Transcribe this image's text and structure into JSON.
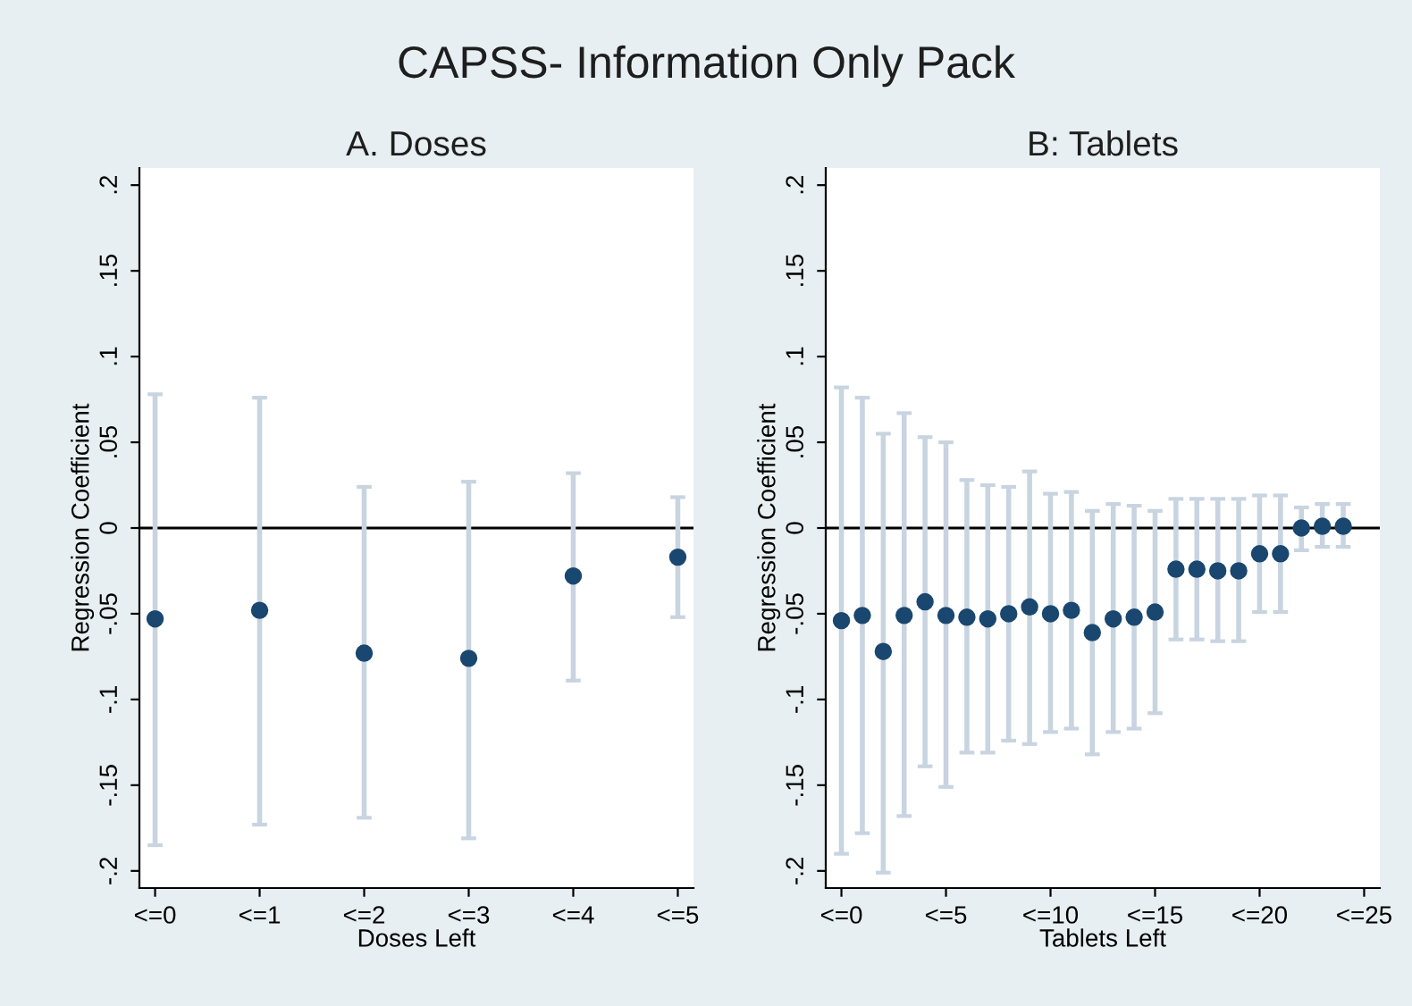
{
  "chart_data": [
    {
      "type": "scatter",
      "title": "A. Doses",
      "xlabel": "Doses Left",
      "ylabel": "Regression Coefficient",
      "annotations": [
        "CAPSS- Information Only Pack"
      ],
      "categories": [
        "<=0",
        "<=1",
        "<=2",
        "<=3",
        "<=4",
        "<=5"
      ],
      "series": [
        {
          "color": "#1a476f",
          "values": [
            -0.053,
            -0.048,
            -0.073,
            -0.076,
            -0.028,
            -0.017
          ],
          "errors": [
            [
              -0.185,
              0.078
            ],
            [
              -0.173,
              0.076
            ],
            [
              -0.169,
              0.024
            ],
            [
              -0.181,
              0.027
            ],
            [
              -0.089,
              0.032
            ],
            [
              -0.052,
              0.018
            ]
          ]
        }
      ],
      "ylim": [
        -0.21,
        0.21
      ],
      "yticks": [
        {
          "value": -0.2,
          "label": "-.2"
        },
        {
          "value": -0.15,
          "label": "-.15"
        },
        {
          "value": -0.1,
          "label": "-.1"
        },
        {
          "value": -0.05,
          "label": "-.05"
        },
        0,
        {
          "value": 0.05,
          "label": ".05"
        },
        {
          "value": 0.1,
          "label": ".1"
        },
        {
          "value": 0.15,
          "label": ".15"
        },
        {
          "value": 0.2,
          "label": ".2"
        }
      ],
      "ref_lines": [
        {
          "axis": "y",
          "value": 0,
          "color": "#000000"
        }
      ],
      "marker": "circle",
      "grid": false,
      "legend": false
    },
    {
      "type": "scatter",
      "title": "B: Tablets",
      "xlabel": "Tablets Left",
      "ylabel": "Regression Coefficient",
      "categories": [
        "<=0",
        null,
        null,
        null,
        null,
        "<=5",
        null,
        null,
        null,
        null,
        "<=10",
        null,
        null,
        null,
        null,
        "<=15",
        null,
        null,
        null,
        null,
        "<=20",
        null,
        null,
        null,
        null,
        "<=25"
      ],
      "series": [
        {
          "color": "#1a476f",
          "values": [
            -0.054,
            -0.051,
            -0.072,
            -0.051,
            -0.043,
            -0.051,
            -0.052,
            -0.053,
            -0.05,
            -0.046,
            -0.05,
            -0.048,
            -0.061,
            -0.053,
            -0.052,
            -0.049,
            -0.024,
            -0.024,
            -0.025,
            -0.025,
            -0.015,
            -0.015,
            0.0,
            0.001,
            0.001,
            null
          ],
          "errors": [
            [
              -0.19,
              0.082
            ],
            [
              -0.178,
              0.076
            ],
            [
              -0.201,
              0.055
            ],
            [
              -0.168,
              0.067
            ],
            [
              -0.139,
              0.053
            ],
            [
              -0.151,
              0.05
            ],
            [
              -0.131,
              0.028
            ],
            [
              -0.131,
              0.025
            ],
            [
              -0.124,
              0.024
            ],
            [
              -0.126,
              0.033
            ],
            [
              -0.119,
              0.02
            ],
            [
              -0.117,
              0.021
            ],
            [
              -0.132,
              0.01
            ],
            [
              -0.119,
              0.014
            ],
            [
              -0.117,
              0.013
            ],
            [
              -0.108,
              0.01
            ],
            [
              -0.065,
              0.017
            ],
            [
              -0.065,
              0.017
            ],
            [
              -0.066,
              0.017
            ],
            [
              -0.066,
              0.017
            ],
            [
              -0.049,
              0.019
            ],
            [
              -0.049,
              0.019
            ],
            [
              -0.013,
              0.012
            ],
            [
              -0.011,
              0.014
            ],
            [
              -0.011,
              0.014
            ],
            null
          ]
        }
      ],
      "ylim": [
        -0.21,
        0.21
      ],
      "yticks": [
        {
          "value": -0.2,
          "label": "-.2"
        },
        {
          "value": -0.15,
          "label": "-.15"
        },
        {
          "value": -0.1,
          "label": "-.1"
        },
        {
          "value": -0.05,
          "label": "-.05"
        },
        0,
        {
          "value": 0.05,
          "label": ".05"
        },
        {
          "value": 0.1,
          "label": ".1"
        },
        {
          "value": 0.15,
          "label": ".15"
        },
        {
          "value": 0.2,
          "label": ".2"
        }
      ],
      "ref_lines": [
        {
          "axis": "y",
          "value": 0,
          "color": "#000000"
        }
      ],
      "marker": "circle",
      "grid": false,
      "legend": false
    }
  ]
}
